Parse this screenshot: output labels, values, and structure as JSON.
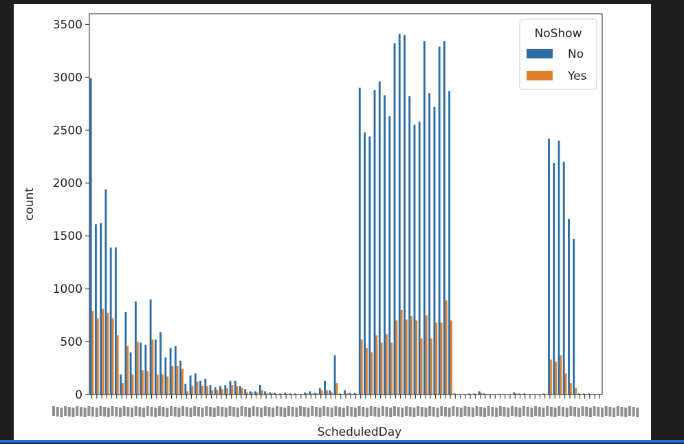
{
  "chart_data": {
    "type": "bar",
    "xlabel": "ScheduledDay",
    "ylabel": "count",
    "ylim": [
      0,
      3600
    ],
    "yticks": [
      0,
      500,
      1000,
      1500,
      2000,
      2500,
      3000,
      3500
    ],
    "legend": {
      "title": "NoShow",
      "position": "top-right"
    },
    "colors": {
      "No": "#2f6ea5",
      "Yes": "#e1812c"
    },
    "category_count": 103,
    "series": [
      {
        "name": "No",
        "values": [
          2990,
          1610,
          1620,
          1940,
          1390,
          1390,
          190,
          780,
          400,
          880,
          490,
          470,
          900,
          520,
          590,
          350,
          440,
          460,
          320,
          100,
          180,
          200,
          130,
          150,
          90,
          70,
          80,
          90,
          130,
          130,
          80,
          50,
          30,
          30,
          90,
          30,
          20,
          15,
          10,
          15,
          10,
          10,
          5,
          20,
          30,
          15,
          60,
          130,
          40,
          370,
          10,
          40,
          15,
          15,
          2900,
          2480,
          2440,
          2880,
          2960,
          2830,
          2630,
          3320,
          3410,
          3400,
          2820,
          2550,
          2580,
          3340,
          2850,
          2720,
          3290,
          3340,
          2870,
          10,
          5,
          5,
          10,
          10,
          30,
          10,
          5,
          5,
          5,
          5,
          5,
          20,
          10,
          10,
          5,
          5,
          5,
          10,
          2420,
          2190,
          2400,
          2200,
          1660,
          1470,
          10,
          10,
          10,
          5,
          5
        ],
        "approximate": true
      },
      {
        "name": "Yes",
        "values": [
          790,
          720,
          810,
          770,
          720,
          560,
          110,
          460,
          190,
          500,
          230,
          220,
          520,
          190,
          190,
          170,
          270,
          270,
          240,
          30,
          80,
          120,
          80,
          80,
          40,
          40,
          50,
          60,
          90,
          80,
          60,
          20,
          20,
          20,
          40,
          10,
          10,
          5,
          5,
          5,
          5,
          5,
          5,
          10,
          10,
          10,
          40,
          40,
          20,
          110,
          5,
          10,
          5,
          5,
          520,
          440,
          400,
          560,
          490,
          570,
          490,
          700,
          800,
          710,
          740,
          700,
          530,
          750,
          530,
          680,
          680,
          890,
          700,
          5,
          2,
          2,
          5,
          5,
          15,
          5,
          2,
          2,
          2,
          2,
          2,
          10,
          5,
          5,
          2,
          2,
          2,
          5,
          330,
          310,
          370,
          200,
          110,
          60,
          5,
          5,
          5,
          2,
          2
        ],
        "approximate": true
      }
    ],
    "legend_labels": {
      "No": "No",
      "Yes": "Yes"
    }
  }
}
